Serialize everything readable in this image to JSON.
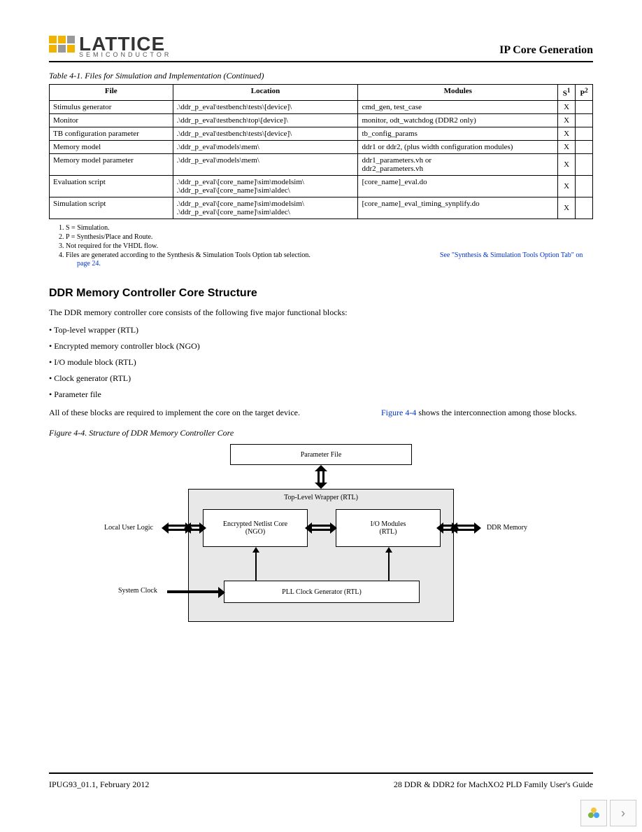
{
  "header": {
    "logo_main": "LATTICE",
    "logo_sub": "SEMICONDUCTOR",
    "title": "IP Core Generation"
  },
  "table": {
    "caption": "Table 4-1. Files for Simulation and Implementation (Continued)",
    "headers": {
      "file": "File",
      "location": "Location",
      "modules": "Modules",
      "s": "S",
      "p": "P",
      "s_sup": "1",
      "p_sup": "2"
    },
    "rows": [
      {
        "file": "Stimulus generator",
        "location": ".\\ddr_p_eval\\testbench\\tests\\[device]\\",
        "modules": "cmd_gen, test_case",
        "s": "X",
        "p": ""
      },
      {
        "file": "Monitor",
        "location": ".\\ddr_p_eval\\testbench\\top\\[device]\\",
        "modules": "monitor, odt_watchdog (DDR2 only)",
        "s": "X",
        "p": ""
      },
      {
        "file": "TB configuration parameter",
        "location": ".\\ddr_p_eval\\testbench\\tests\\[device]\\",
        "modules": "tb_config_params",
        "s": "X",
        "p": ""
      },
      {
        "file": "Memory model",
        "location": ".\\ddr_p_eval\\models\\mem\\",
        "modules": "ddr1 or ddr2, (plus width configuration modules)",
        "s": "X",
        "p": ""
      },
      {
        "file": "Memory model parameter",
        "location": ".\\ddr_p_eval\\models\\mem\\",
        "modules": "ddr1_parameters.vh or\nddr2_parameters.vh",
        "s": "X",
        "p": ""
      },
      {
        "file": "Evaluation script",
        "location": ".\\ddr_p_eval\\[core_name]\\sim\\modelsim\\\n.\\ddr_p_eval\\[core_name]\\sim\\aldec\\",
        "modules": "[core_name]_eval.do",
        "s": "X",
        "p": ""
      },
      {
        "file": "Simulation script",
        "location": ".\\ddr_p_eval\\[core_name]\\sim\\modelsim\\\n.\\ddr_p_eval\\[core_name]\\sim\\aldec\\",
        "modules": "[core_name]_eval_timing_synplify.do",
        "s": "X",
        "p": ""
      }
    ]
  },
  "footnotes": {
    "n1": "1. S = Simulation.",
    "n2": "2. P = Synthesis/Place and Route.",
    "n3": "3. Not required for the VHDL flow.",
    "n4a": "4. Files are generated according to the Synthesis & Simulation Tools Option tab selection.",
    "n4b": "See \"Synthesis & Simulation Tools Option Tab\" on",
    "n4c": "page 24."
  },
  "section": {
    "heading": "DDR Memory Controller Core Structure",
    "intro": "The DDR memory controller core consists of the following five major functional blocks:",
    "bullets": [
      "Top-level wrapper (RTL)",
      "Encrypted memory controller block (NGO)",
      "I/O module block (RTL)",
      "Clock generator (RTL)",
      "Parameter file"
    ],
    "para2a": "All of these blocks are required to implement the core on the target device.",
    "para2_link": "Figure 4-4",
    "para2b": " shows the interconnection among those blocks."
  },
  "figure": {
    "caption": "Figure 4-4. Structure of DDR Memory Controller Core",
    "param_file": "Parameter File",
    "wrapper": "Top-Level Wrapper (RTL)",
    "enc": "Encrypted Netlist Core\n(NGO)",
    "io": "I/O Modules\n(RTL)",
    "pll": "PLL Clock Generator (RTL)",
    "local": "Local User Logic",
    "ddr": "DDR Memory",
    "clock": "System Clock"
  },
  "footer": {
    "left": "IPUG93_01.1, February 2012",
    "right": "28 DDR & DDR2 for MachXO2 PLD Family User's Guide"
  }
}
